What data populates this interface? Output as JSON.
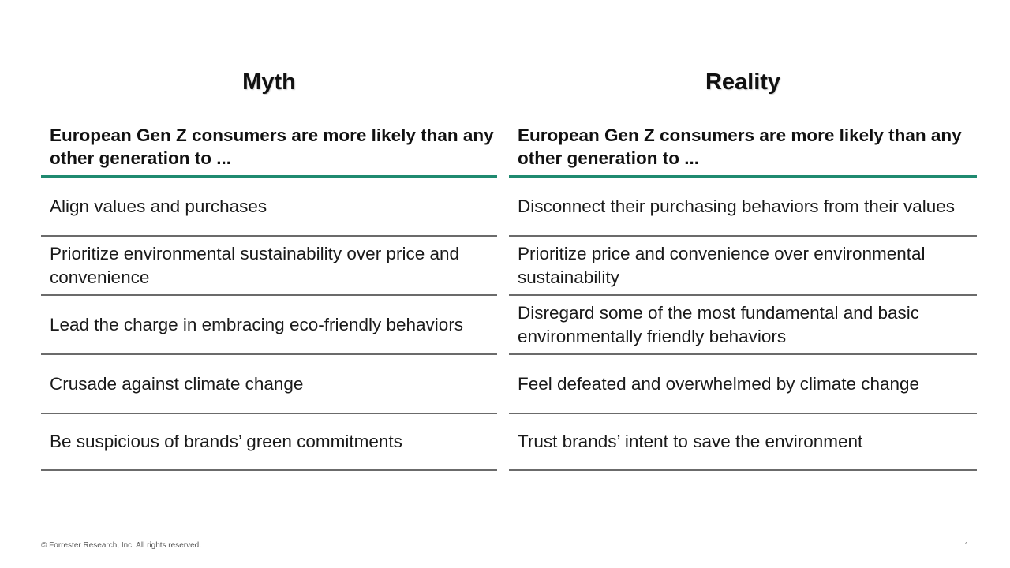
{
  "myth": {
    "title": "Myth",
    "header": "European Gen Z consumers are more likely than any other generation to ...",
    "rows": [
      "Align values and purchases",
      "Prioritize environmental sustainability over price and convenience",
      "Lead the charge in embracing eco-friendly behaviors",
      "Crusade against climate change",
      "Be suspicious of brands’ green commitments"
    ]
  },
  "reality": {
    "title": "Reality",
    "header": "European Gen Z consumers are more likely than any other generation to ...",
    "rows": [
      "Disconnect their purchasing behaviors from their values",
      "Prioritize price and convenience over environmental sustainability",
      "Disregard some of the most fundamental and basic environmentally friendly behaviors",
      "Feel defeated and overwhelmed by climate change",
      "Trust brands’ intent to save the environment"
    ]
  },
  "footer": {
    "copyright": "© Forrester Research, Inc. All rights reserved.",
    "page_number": "1"
  },
  "colors": {
    "accent_rule": "#1f8a70",
    "row_rule": "#6b6b6b"
  }
}
